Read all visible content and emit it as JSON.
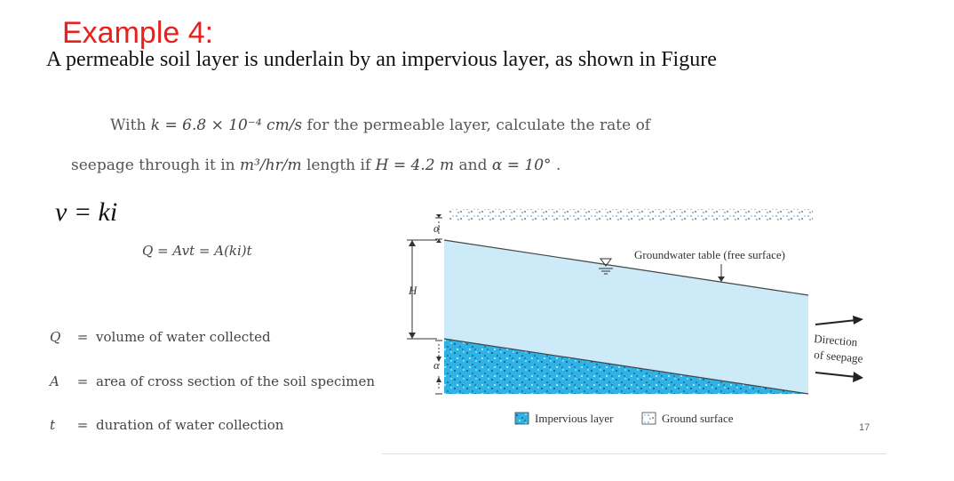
{
  "slide": {
    "title": "Example 4:",
    "subtitle": "A permeable soil layer is underlain by an impervious layer, as shown in Figure",
    "page_number": "17"
  },
  "problem": {
    "line1_a": "With ",
    "line1_math": "k = 6.8 × 10⁻⁴ cm/s",
    "line1_b": " for the permeable layer, calculate the rate of",
    "line2_a": "seepage through it in ",
    "line2_unit": "m³/hr/m",
    "line2_b": " length if ",
    "line2_h": "H = 4.2 m",
    "line2_c": " and ",
    "line2_alpha": "α = 10°",
    "line2_d": " ."
  },
  "equations": {
    "v_eq": "v = ki",
    "q_eq": "Q = Avt = A(ki)t"
  },
  "definitions": [
    {
      "symbol": "Q",
      "eq": "=",
      "text": "volume of water collected"
    },
    {
      "symbol": "A",
      "eq": "=",
      "text": "area of cross section of the soil specimen"
    },
    {
      "symbol": "t",
      "eq": "=",
      "text": "duration of water collection"
    }
  ],
  "figure": {
    "gw_label": "Groundwater table (free surface)",
    "direction_line1": "Direction",
    "direction_line2": "of seepage",
    "h_label": "H",
    "alpha_top": "α",
    "alpha_bottom": "α",
    "legend_impervious": "Impervious layer",
    "legend_ground": "Ground surface",
    "colors": {
      "water": "#cdeaf8",
      "impervious": "#2fb3e6",
      "outline": "#444444"
    }
  }
}
